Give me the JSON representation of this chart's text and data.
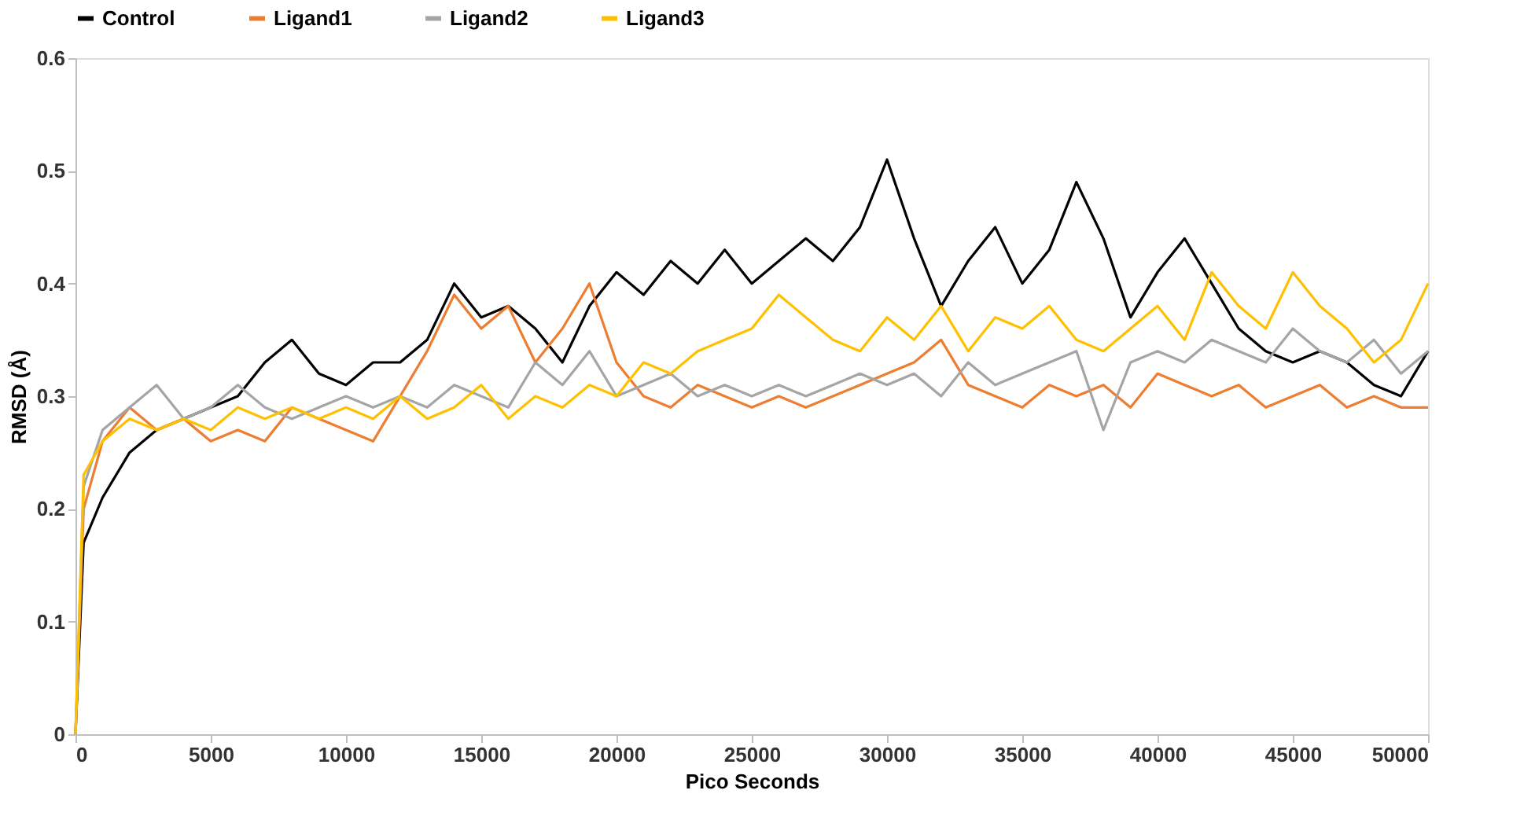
{
  "chart_data": {
    "type": "line",
    "xlabel": "Pico Seconds",
    "ylabel": "RMSD (Å)",
    "x": [
      0,
      300,
      1000,
      2000,
      3000,
      4000,
      5000,
      6000,
      7000,
      8000,
      9000,
      10000,
      11000,
      12000,
      13000,
      14000,
      15000,
      16000,
      17000,
      18000,
      19000,
      20000,
      21000,
      22000,
      23000,
      24000,
      25000,
      26000,
      27000,
      28000,
      29000,
      30000,
      31000,
      32000,
      33000,
      34000,
      35000,
      36000,
      37000,
      38000,
      39000,
      40000,
      41000,
      42000,
      43000,
      44000,
      45000,
      46000,
      47000,
      48000,
      49000,
      50000
    ],
    "series": [
      {
        "name": "Control",
        "color": "#000000",
        "values": [
          0,
          0.17,
          0.21,
          0.25,
          0.27,
          0.28,
          0.29,
          0.3,
          0.33,
          0.35,
          0.32,
          0.31,
          0.33,
          0.33,
          0.35,
          0.4,
          0.37,
          0.38,
          0.36,
          0.33,
          0.38,
          0.41,
          0.39,
          0.42,
          0.4,
          0.43,
          0.4,
          0.42,
          0.44,
          0.42,
          0.45,
          0.51,
          0.44,
          0.38,
          0.42,
          0.45,
          0.4,
          0.43,
          0.49,
          0.44,
          0.37,
          0.41,
          0.44,
          0.4,
          0.36,
          0.34,
          0.33,
          0.34,
          0.33,
          0.31,
          0.3,
          0.34
        ]
      },
      {
        "name": "Ligand1",
        "color": "#ed7d31",
        "values": [
          0,
          0.2,
          0.26,
          0.29,
          0.27,
          0.28,
          0.26,
          0.27,
          0.26,
          0.29,
          0.28,
          0.27,
          0.26,
          0.3,
          0.34,
          0.39,
          0.36,
          0.38,
          0.33,
          0.36,
          0.4,
          0.33,
          0.3,
          0.29,
          0.31,
          0.3,
          0.29,
          0.3,
          0.29,
          0.3,
          0.31,
          0.32,
          0.33,
          0.35,
          0.31,
          0.3,
          0.29,
          0.31,
          0.3,
          0.31,
          0.29,
          0.32,
          0.31,
          0.3,
          0.31,
          0.29,
          0.3,
          0.31,
          0.29,
          0.3,
          0.29,
          0.29
        ]
      },
      {
        "name": "Ligand2",
        "color": "#a5a5a5",
        "values": [
          0,
          0.22,
          0.27,
          0.29,
          0.31,
          0.28,
          0.29,
          0.31,
          0.29,
          0.28,
          0.29,
          0.3,
          0.29,
          0.3,
          0.29,
          0.31,
          0.3,
          0.29,
          0.33,
          0.31,
          0.34,
          0.3,
          0.31,
          0.32,
          0.3,
          0.31,
          0.3,
          0.31,
          0.3,
          0.31,
          0.32,
          0.31,
          0.32,
          0.3,
          0.33,
          0.31,
          0.32,
          0.33,
          0.34,
          0.27,
          0.33,
          0.34,
          0.33,
          0.35,
          0.34,
          0.33,
          0.36,
          0.34,
          0.33,
          0.35,
          0.32,
          0.34
        ]
      },
      {
        "name": "Ligand3",
        "color": "#ffc000",
        "values": [
          0,
          0.23,
          0.26,
          0.28,
          0.27,
          0.28,
          0.27,
          0.29,
          0.28,
          0.29,
          0.28,
          0.29,
          0.28,
          0.3,
          0.28,
          0.29,
          0.31,
          0.28,
          0.3,
          0.29,
          0.31,
          0.3,
          0.33,
          0.32,
          0.34,
          0.35,
          0.36,
          0.39,
          0.37,
          0.35,
          0.34,
          0.37,
          0.35,
          0.38,
          0.34,
          0.37,
          0.36,
          0.38,
          0.35,
          0.34,
          0.36,
          0.38,
          0.35,
          0.41,
          0.38,
          0.36,
          0.41,
          0.38,
          0.36,
          0.33,
          0.35,
          0.4
        ]
      }
    ],
    "xlim": [
      0,
      50000
    ],
    "xticks": [
      0,
      5000,
      10000,
      15000,
      20000,
      25000,
      30000,
      35000,
      40000,
      45000,
      50000
    ],
    "ylim": [
      0,
      0.6
    ],
    "yticks": [
      0,
      0.1,
      0.2,
      0.3,
      0.4,
      0.5,
      0.6
    ],
    "grid": false,
    "legend": "top",
    "marker": "none",
    "line_style": "solid"
  }
}
